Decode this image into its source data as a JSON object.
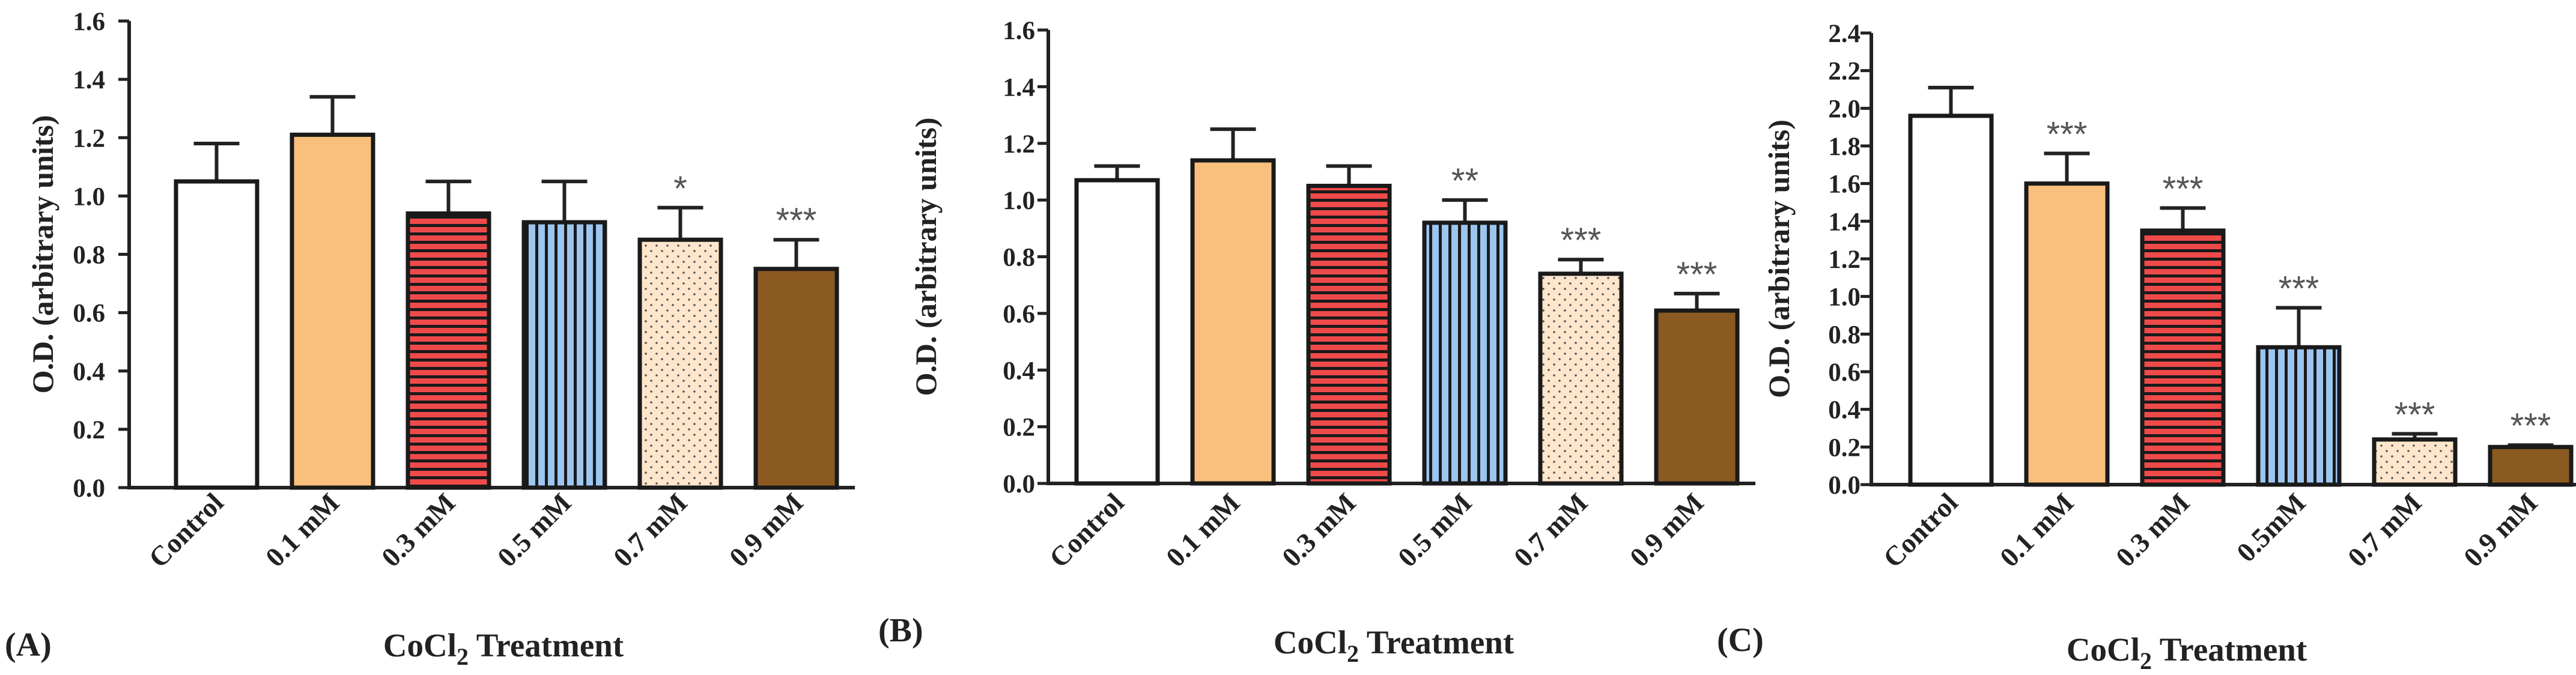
{
  "chart_data": [
    {
      "type": "bar",
      "panel_label": "(A)",
      "ylabel": "O.D. (arbitrary units)",
      "xlabel_main": "CoCl",
      "xlabel_sub": "2",
      "xlabel_rest": " Treatment",
      "ylim": [
        0,
        1.6
      ],
      "yticks": [
        "0.0",
        "0.2",
        "0.4",
        "0.6",
        "0.8",
        "1.0",
        "1.2",
        "1.4",
        "1.6"
      ],
      "categories": [
        "Control",
        "0.1 mM",
        "0.3 mM",
        "0.5 mM",
        "0.7 mM",
        "0.9 mM"
      ],
      "values": [
        1.05,
        1.21,
        0.94,
        0.91,
        0.85,
        0.75
      ],
      "errors": [
        0.13,
        0.13,
        0.11,
        0.14,
        0.11,
        0.1
      ],
      "significance": [
        "",
        "",
        "",
        "",
        "*",
        "***"
      ]
    },
    {
      "type": "bar",
      "panel_label": "(B)",
      "ylabel": "O.D. (arbitrary units)",
      "xlabel_main": "CoCl",
      "xlabel_sub": "2",
      "xlabel_rest": " Treatment",
      "ylim": [
        0,
        1.6
      ],
      "yticks": [
        "0.0",
        "0.2",
        "0.4",
        "0.6",
        "0.8",
        "1.0",
        "1.2",
        "1.4",
        "1.6"
      ],
      "categories": [
        "Control",
        "0.1 mM",
        "0.3 mM",
        "0.5 mM",
        "0.7 mM",
        "0.9 mM"
      ],
      "values": [
        1.07,
        1.14,
        1.05,
        0.92,
        0.74,
        0.61
      ],
      "errors": [
        0.05,
        0.11,
        0.07,
        0.08,
        0.05,
        0.06
      ],
      "significance": [
        "",
        "",
        "",
        "**",
        "***",
        "***"
      ]
    },
    {
      "type": "bar",
      "panel_label": "(C)",
      "ylabel": "O.D. (arbitrary units)",
      "xlabel_main": "CoCl",
      "xlabel_sub": "2",
      "xlabel_rest": " Treatment",
      "ylim": [
        0,
        2.4
      ],
      "yticks": [
        "0.0",
        "0.2",
        "0.4",
        "0.6",
        "0.8",
        "1.0",
        "1.2",
        "1.4",
        "1.6",
        "1.8",
        "2.0",
        "2.2",
        "2.4"
      ],
      "categories": [
        "Control",
        "0.1 mM",
        "0.3 mM",
        "0.5mM",
        "0.7 mM",
        "0.9 mM"
      ],
      "values": [
        1.96,
        1.6,
        1.35,
        0.73,
        0.24,
        0.2
      ],
      "errors": [
        0.15,
        0.16,
        0.12,
        0.21,
        0.03,
        0.01
      ],
      "significance": [
        "",
        "***",
        "***",
        "***",
        "***",
        "***"
      ]
    }
  ],
  "bar_styles": [
    {
      "fill": "#ffffff",
      "pattern": "none"
    },
    {
      "fill": "#f9bf7c",
      "pattern": "none"
    },
    {
      "fill": "#ef4a4a",
      "pattern": "horizontal"
    },
    {
      "fill": "#9cc5ef",
      "pattern": "vertical"
    },
    {
      "fill": "#fde6cc",
      "pattern": "dots"
    },
    {
      "fill": "#8b5a21",
      "pattern": "none"
    }
  ]
}
